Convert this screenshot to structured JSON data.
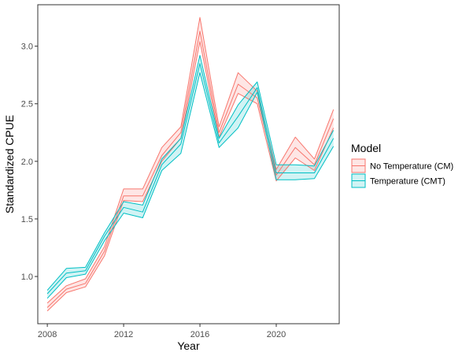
{
  "chart_data": {
    "type": "line",
    "xlabel": "Year",
    "ylabel": "Standardized CPUE",
    "xlim": [
      2007.5,
      2023.3
    ],
    "ylim": [
      0.59,
      3.36
    ],
    "x_ticks": [
      2008,
      2012,
      2016,
      2020
    ],
    "y_ticks": [
      1.0,
      1.5,
      2.0,
      2.5,
      3.0
    ],
    "x_tick_labels": [
      "2008",
      "2012",
      "2016",
      "2020"
    ],
    "y_tick_labels": [
      "1.0",
      "1.5",
      "2.0",
      "2.5",
      "3.0"
    ],
    "grid": false,
    "legend": {
      "title": "Model",
      "placement": "right"
    },
    "x": [
      2008,
      2009,
      2010,
      2011,
      2012,
      2013,
      2014,
      2015,
      2016,
      2017,
      2018,
      2019,
      2020,
      2021,
      2022,
      2023
    ],
    "series": [
      {
        "name": "No Temperature (CM)",
        "color": "#F8766D",
        "values": [
          0.73,
          0.89,
          0.94,
          1.22,
          1.7,
          1.7,
          2.05,
          2.25,
          3.13,
          2.25,
          2.67,
          2.55,
          1.88,
          2.12,
          1.97,
          2.37
        ],
        "lower": [
          0.7,
          0.86,
          0.91,
          1.18,
          1.66,
          1.65,
          2.0,
          2.2,
          3.04,
          2.21,
          2.59,
          2.5,
          1.83,
          2.03,
          1.92,
          2.29
        ],
        "upper": [
          0.77,
          0.92,
          0.98,
          1.26,
          1.76,
          1.76,
          2.12,
          2.3,
          3.25,
          2.3,
          2.77,
          2.61,
          1.93,
          2.21,
          2.02,
          2.45
        ]
      },
      {
        "name": "Temperature (CMT)",
        "color": "#00BFC4",
        "values": [
          0.85,
          1.03,
          1.05,
          1.35,
          1.6,
          1.56,
          1.97,
          2.15,
          2.85,
          2.16,
          2.39,
          2.64,
          1.9,
          1.9,
          1.9,
          2.2
        ],
        "lower": [
          0.81,
          0.99,
          1.02,
          1.31,
          1.55,
          1.51,
          1.92,
          2.07,
          2.77,
          2.12,
          2.29,
          2.6,
          1.84,
          1.84,
          1.85,
          2.13
        ],
        "upper": [
          0.88,
          1.07,
          1.08,
          1.38,
          1.65,
          1.62,
          2.02,
          2.2,
          2.92,
          2.2,
          2.49,
          2.69,
          1.97,
          1.97,
          1.96,
          2.27
        ]
      }
    ]
  }
}
